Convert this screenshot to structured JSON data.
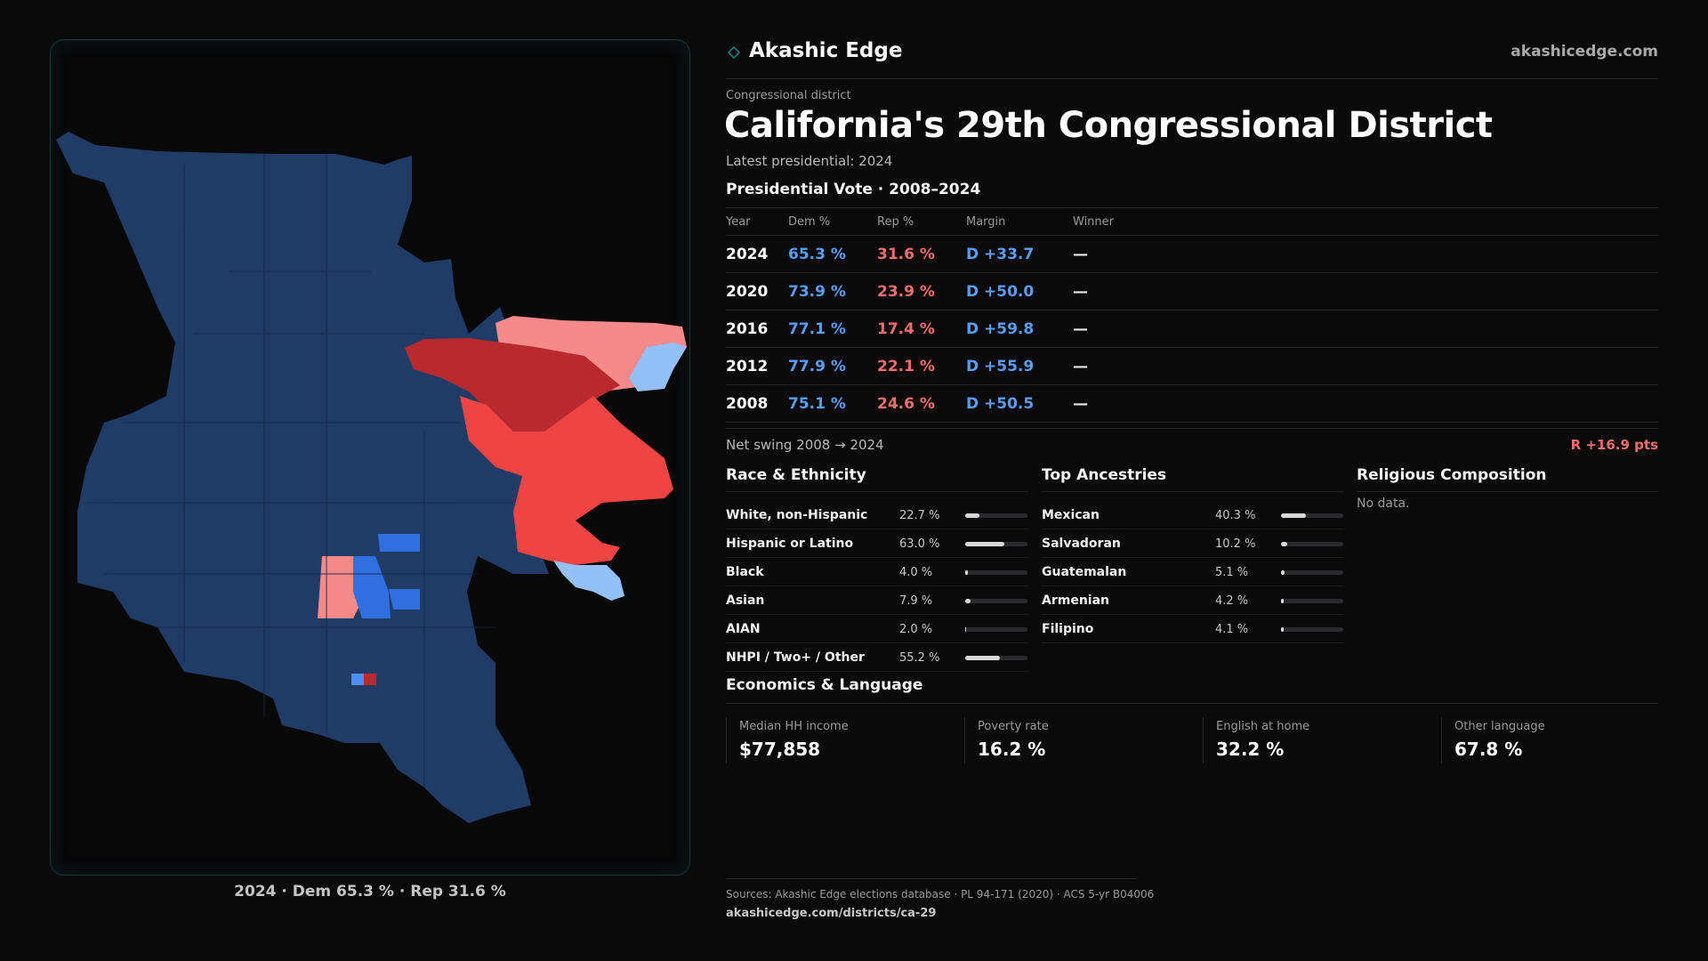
{
  "colors": {
    "dem_strong": "#1f3b66",
    "dem_mid": "#2f6fe0",
    "dem_light": "#4d8ef2",
    "dem_pale": "#93c0f7",
    "rep_strong": "#b82a2e",
    "rep_mid": "#ee4444",
    "rep_light": "#f58a8a"
  },
  "map": {
    "caption": "2024 · Dem 65.3 % · Rep 31.6 %",
    "precincts": [
      {
        "name": "base",
        "lean": "dem_strong"
      },
      {
        "name": "ne-light-red",
        "lean": "rep_light"
      },
      {
        "name": "ne-dark-red",
        "lean": "rep_strong"
      },
      {
        "name": "ne-mid-red",
        "lean": "rep_mid"
      },
      {
        "name": "ne-pale-blue",
        "lean": "dem_pale"
      },
      {
        "name": "center-light-red",
        "lean": "rep_light"
      },
      {
        "name": "center-blue",
        "lean": "dem_mid"
      },
      {
        "name": "south-red",
        "lean": "rep_strong"
      },
      {
        "name": "south-blue",
        "lean": "dem_light"
      }
    ]
  },
  "header": {
    "brand": "Akashic Edge",
    "site": "akashicedge.com"
  },
  "district": {
    "overline": "Congressional district",
    "title": "California's 29th Congressional District",
    "subtitle": "Latest presidential: 2024"
  },
  "vote": {
    "title": "Presidential Vote · 2008–2024",
    "columns": [
      "Year",
      "Dem %",
      "Rep %",
      "Margin",
      "Winner"
    ],
    "rows": [
      {
        "year": "2024",
        "dem": "65.3 %",
        "rep": "31.6 %",
        "margin": "D +33.7",
        "winner": "—"
      },
      {
        "year": "2020",
        "dem": "73.9 %",
        "rep": "23.9 %",
        "margin": "D +50.0",
        "winner": "—"
      },
      {
        "year": "2016",
        "dem": "77.1 %",
        "rep": "17.4 %",
        "margin": "D +59.8",
        "winner": "—"
      },
      {
        "year": "2012",
        "dem": "77.9 %",
        "rep": "22.1 %",
        "margin": "D +55.9",
        "winner": "—"
      },
      {
        "year": "2008",
        "dem": "75.1 %",
        "rep": "24.6 %",
        "margin": "D +50.5",
        "winner": "—"
      }
    ],
    "swing_label": "Net swing 2008 → 2024",
    "swing_value": "R +16.9 pts"
  },
  "race": {
    "title": "Race & Ethnicity",
    "rows": [
      {
        "name": "White, non-Hispanic",
        "pct": "22.7 %",
        "value": 22.7
      },
      {
        "name": "Hispanic or Latino",
        "pct": "63.0 %",
        "value": 63.0
      },
      {
        "name": "Black",
        "pct": "4.0 %",
        "value": 4.0
      },
      {
        "name": "Asian",
        "pct": "7.9 %",
        "value": 7.9
      },
      {
        "name": "AIAN",
        "pct": "2.0 %",
        "value": 2.0
      },
      {
        "name": "NHPI / Two+ / Other",
        "pct": "55.2 %",
        "value": 55.2
      }
    ]
  },
  "ancestry": {
    "title": "Top Ancestries",
    "rows": [
      {
        "name": "Mexican",
        "pct": "40.3 %",
        "value": 40.3
      },
      {
        "name": "Salvadoran",
        "pct": "10.2 %",
        "value": 10.2
      },
      {
        "name": "Guatemalan",
        "pct": "5.1 %",
        "value": 5.1
      },
      {
        "name": "Armenian",
        "pct": "4.2 %",
        "value": 4.2
      },
      {
        "name": "Filipino",
        "pct": "4.1 %",
        "value": 4.1
      }
    ]
  },
  "religion": {
    "title": "Religious Composition",
    "empty": "No data."
  },
  "economics": {
    "title": "Economics & Language",
    "cards": [
      {
        "label": "Median HH income",
        "value": "$77,858"
      },
      {
        "label": "Poverty rate",
        "value": "16.2 %"
      },
      {
        "label": "English at home",
        "value": "32.2 %"
      },
      {
        "label": "Other language",
        "value": "67.8 %"
      }
    ]
  },
  "footer": {
    "sources": "Sources: Akashic Edge elections database · PL 94-171 (2020) · ACS 5-yr B04006",
    "url": "akashicedge.com/districts/ca-29"
  }
}
